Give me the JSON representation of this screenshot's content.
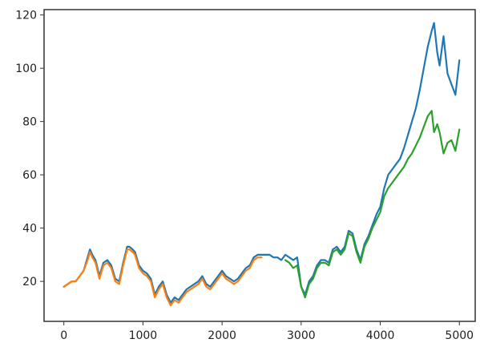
{
  "chart_data": {
    "type": "line",
    "title": "",
    "xlabel": "",
    "ylabel": "",
    "xlim": [
      -250,
      5200
    ],
    "ylim": [
      5,
      122
    ],
    "xticks": [
      0,
      1000,
      2000,
      3000,
      4000,
      5000
    ],
    "yticks": [
      20,
      40,
      60,
      80,
      100,
      120
    ],
    "grid": false,
    "legend": "none",
    "series": [
      {
        "color": "#1f77b4",
        "x": [
          0,
          50,
          100,
          150,
          200,
          250,
          300,
          330,
          360,
          400,
          450,
          500,
          550,
          600,
          650,
          700,
          750,
          800,
          830,
          870,
          900,
          950,
          1000,
          1050,
          1100,
          1150,
          1200,
          1250,
          1300,
          1350,
          1400,
          1450,
          1500,
          1550,
          1600,
          1650,
          1700,
          1750,
          1800,
          1850,
          1900,
          1950,
          2000,
          2050,
          2100,
          2150,
          2200,
          2250,
          2300,
          2350,
          2400,
          2450,
          2500,
          2550,
          2600,
          2650,
          2700,
          2750,
          2800,
          2850,
          2900,
          2950,
          3000,
          3050,
          3100,
          3150,
          3200,
          3250,
          3300,
          3350,
          3400,
          3450,
          3500,
          3550,
          3600,
          3650,
          3700,
          3750,
          3800,
          3850,
          3900,
          3950,
          4000,
          4050,
          4100,
          4150,
          4200,
          4250,
          4300,
          4350,
          4400,
          4450,
          4500,
          4550,
          4600,
          4650,
          4680,
          4720,
          4750,
          4800,
          4850,
          4900,
          4950,
          5000
        ],
        "y": [
          18,
          19,
          20,
          20,
          22,
          24,
          29,
          32,
          30,
          28,
          22,
          27,
          28,
          26,
          21,
          20,
          27,
          33,
          33,
          32,
          31,
          26,
          24,
          23,
          21,
          15,
          18,
          20,
          15,
          12,
          14,
          13,
          15,
          17,
          18,
          19,
          20,
          22,
          19,
          18,
          20,
          22,
          24,
          22,
          21,
          20,
          21,
          23,
          25,
          26,
          29,
          30,
          30,
          30,
          30,
          29,
          29,
          28,
          30,
          29,
          28,
          29,
          18,
          15,
          20,
          22,
          26,
          28,
          28,
          27,
          32,
          33,
          31,
          33,
          39,
          38,
          32,
          28,
          34,
          37,
          41,
          45,
          48,
          55,
          60,
          62,
          64,
          66,
          70,
          75,
          80,
          85,
          92,
          100,
          108,
          114,
          117,
          106,
          101,
          112,
          98,
          94,
          90,
          103
        ]
      },
      {
        "color": "#ff7f0e",
        "x": [
          0,
          50,
          100,
          150,
          200,
          250,
          300,
          330,
          360,
          400,
          450,
          500,
          550,
          600,
          650,
          700,
          750,
          800,
          830,
          870,
          900,
          950,
          1000,
          1050,
          1100,
          1150,
          1200,
          1250,
          1300,
          1350,
          1400,
          1450,
          1500,
          1550,
          1600,
          1650,
          1700,
          1750,
          1800,
          1850,
          1900,
          1950,
          2000,
          2050,
          2100,
          2150,
          2200,
          2250,
          2300,
          2350,
          2400,
          2450,
          2500
        ],
        "y": [
          18,
          19,
          20,
          20,
          22,
          24,
          28,
          31,
          29,
          27,
          21,
          26,
          27,
          25,
          20,
          19,
          26,
          32,
          32,
          31,
          30,
          25,
          23,
          22,
          20,
          14,
          17,
          19,
          14,
          11,
          13,
          12,
          14,
          16,
          17,
          18,
          19,
          21,
          18,
          17,
          19,
          21,
          23,
          21,
          20,
          19,
          20,
          22,
          24,
          25,
          28,
          29,
          29
        ]
      },
      {
        "color": "#2ca02c",
        "x": [
          2800,
          2850,
          2900,
          2950,
          3000,
          3050,
          3100,
          3150,
          3200,
          3250,
          3300,
          3350,
          3400,
          3450,
          3500,
          3550,
          3600,
          3650,
          3700,
          3750,
          3800,
          3850,
          3900,
          3950,
          4000,
          4050,
          4100,
          4150,
          4200,
          4250,
          4300,
          4350,
          4400,
          4450,
          4500,
          4550,
          4600,
          4650,
          4680,
          4720,
          4750,
          4800,
          4850,
          4900,
          4950,
          5000
        ],
        "y": [
          28,
          27,
          25,
          26,
          18,
          14,
          19,
          21,
          25,
          27,
          27,
          26,
          31,
          32,
          30,
          32,
          38,
          37,
          31,
          27,
          33,
          36,
          40,
          43,
          46,
          52,
          55,
          57,
          59,
          61,
          63,
          66,
          68,
          71,
          74,
          78,
          82,
          84,
          76,
          79,
          76,
          68,
          72,
          73,
          69,
          77
        ]
      }
    ]
  }
}
